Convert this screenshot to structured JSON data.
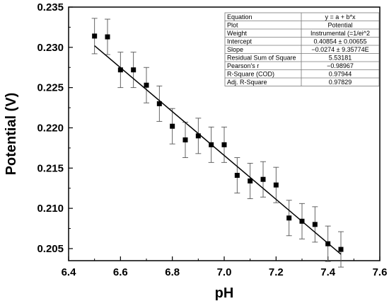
{
  "chart_data": {
    "type": "scatter",
    "xlabel": "pH",
    "ylabel": "Potential (V)",
    "xlim": [
      6.4,
      7.6
    ],
    "ylim": [
      0.2035,
      0.235
    ],
    "x_ticks": [
      "6.4",
      "6.6",
      "6.8",
      "7.0",
      "7.2",
      "7.4",
      "7.6"
    ],
    "y_ticks": [
      "0.205",
      "0.210",
      "0.215",
      "0.220",
      "0.225",
      "0.230",
      "0.235"
    ],
    "grid": false,
    "series": [
      {
        "points": [
          {
            "x": 6.5,
            "y": 0.2314,
            "err": 0.0022
          },
          {
            "x": 6.55,
            "y": 0.2313,
            "err": 0.0022
          },
          {
            "x": 6.6,
            "y": 0.2272,
            "err": 0.0022
          },
          {
            "x": 6.65,
            "y": 0.2272,
            "err": 0.0022
          },
          {
            "x": 6.7,
            "y": 0.2253,
            "err": 0.0022
          },
          {
            "x": 6.75,
            "y": 0.223,
            "err": 0.0022
          },
          {
            "x": 6.8,
            "y": 0.2202,
            "err": 0.0022
          },
          {
            "x": 6.85,
            "y": 0.2185,
            "err": 0.0022
          },
          {
            "x": 6.9,
            "y": 0.219,
            "err": 0.0022
          },
          {
            "x": 6.95,
            "y": 0.2179,
            "err": 0.0022
          },
          {
            "x": 7.0,
            "y": 0.2179,
            "err": 0.0022
          },
          {
            "x": 7.05,
            "y": 0.2141,
            "err": 0.0022
          },
          {
            "x": 7.1,
            "y": 0.2134,
            "err": 0.0022
          },
          {
            "x": 7.15,
            "y": 0.2136,
            "err": 0.0022
          },
          {
            "x": 7.2,
            "y": 0.2129,
            "err": 0.0022
          },
          {
            "x": 7.25,
            "y": 0.2088,
            "err": 0.0022
          },
          {
            "x": 7.3,
            "y": 0.2084,
            "err": 0.0022
          },
          {
            "x": 7.35,
            "y": 0.208,
            "err": 0.0022
          },
          {
            "x": 7.4,
            "y": 0.2056,
            "err": 0.0022
          },
          {
            "x": 7.45,
            "y": 0.2049,
            "err": 0.0022
          }
        ]
      }
    ],
    "fit_line": {
      "x_start": 6.5,
      "y_start": 0.2302,
      "x_end": 7.45,
      "y_end": 0.2043
    },
    "stats_table": [
      [
        "Equation",
        "y = a + b*x"
      ],
      [
        "Plot",
        "Potential"
      ],
      [
        "Weight",
        "Instrumental (=1/ei^2"
      ],
      [
        "Intercept",
        "0.40854 ± 0.00655"
      ],
      [
        "Slope",
        "−0.0274 ± 9.35774E"
      ],
      [
        "Residual Sum of Square",
        "5.53181"
      ],
      [
        "Pearson's r",
        "−0.98967"
      ],
      [
        "R-Square (COD)",
        "0.97944"
      ],
      [
        "Adj. R-Square",
        "0.97829"
      ]
    ]
  }
}
